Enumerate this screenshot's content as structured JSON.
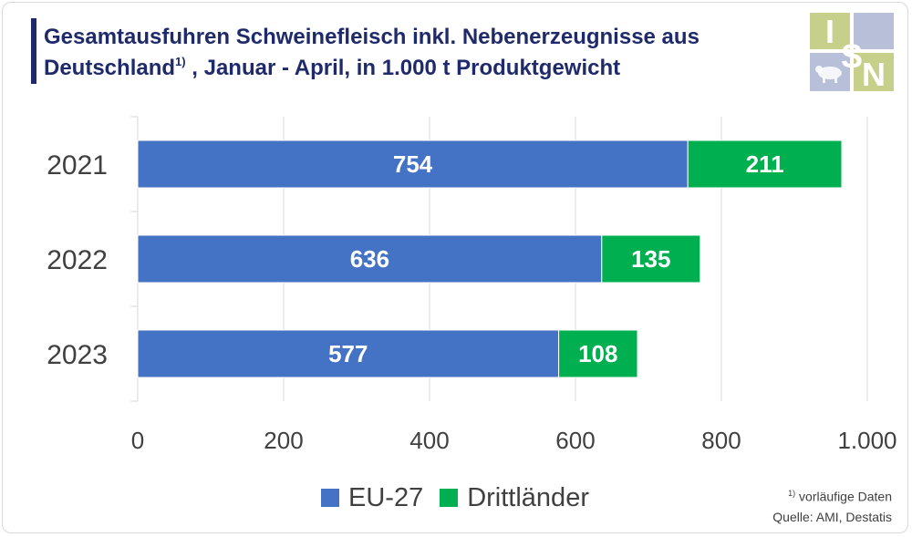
{
  "header": {
    "title_line1": "Gesamtausfuhren Schweinefleisch inkl. Nebenerzeugnisse aus",
    "title_line2_a": "Deutschland",
    "title_line2_sup": "1)",
    "title_line2_b": " , Januar - April, in 1.000 t Produktgewicht"
  },
  "logo": {
    "letters": [
      "I",
      "S",
      "N"
    ],
    "icon": "pig-icon"
  },
  "footnote": {
    "marker": "1)",
    "note": " vorläufige Daten",
    "source": "Quelle: AMI, Destatis"
  },
  "colors": {
    "eu": "#4472c4",
    "third": "#00b050",
    "title": "#1f2a6b"
  },
  "chart_data": {
    "type": "bar",
    "orientation": "horizontal",
    "stacked": true,
    "categories": [
      "2021",
      "2022",
      "2023"
    ],
    "series": [
      {
        "name": "EU-27",
        "values": [
          754,
          636,
          577
        ]
      },
      {
        "name": "Drittländer",
        "values": [
          211,
          135,
          108
        ]
      }
    ],
    "xlim": [
      0,
      1000
    ],
    "x_ticks": [
      0,
      200,
      400,
      600,
      800,
      1000
    ],
    "x_tick_labels": [
      "0",
      "200",
      "400",
      "600",
      "800",
      "1.000"
    ],
    "grid": true,
    "legend": "bottom"
  }
}
